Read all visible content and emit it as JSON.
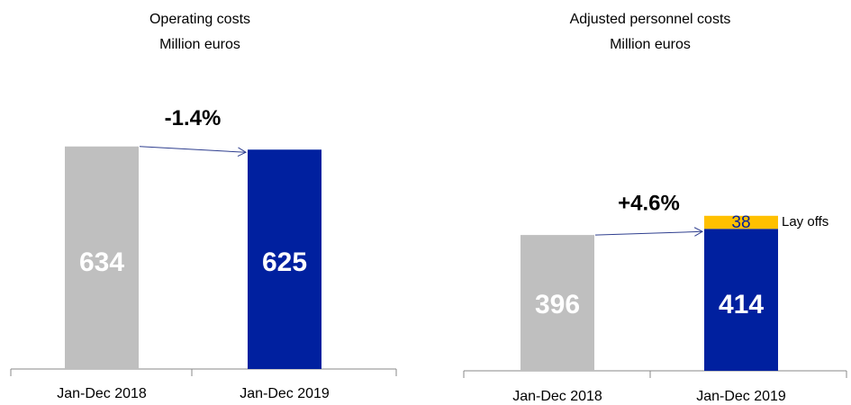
{
  "chart_data": [
    {
      "type": "bar",
      "title": "Operating costs",
      "subtitle": "Million euros",
      "categories": [
        "Jan-Dec 2018",
        "Jan-Dec 2019"
      ],
      "series": [
        {
          "colors": [
            "#bfbfbf",
            "#00209f"
          ],
          "label_color": "#ffffff",
          "values": [
            634,
            625
          ]
        }
      ],
      "annotation": "-1.4%"
    },
    {
      "type": "stacked_bar",
      "title": "Adjusted personnel costs",
      "subtitle": "Million euros",
      "categories": [
        "Jan-Dec 2018",
        "Jan-Dec 2019"
      ],
      "series": [
        {
          "colors": [
            "#bfbfbf",
            "#00209f"
          ],
          "label_color": "#ffffff",
          "values": [
            396,
            414
          ]
        },
        {
          "name": "Lay offs",
          "colors": [
            "#ffc000",
            "#ffc000"
          ],
          "label_color": "#00209f",
          "values": [
            null,
            38
          ]
        }
      ],
      "annotation": "+4.6%"
    }
  ]
}
